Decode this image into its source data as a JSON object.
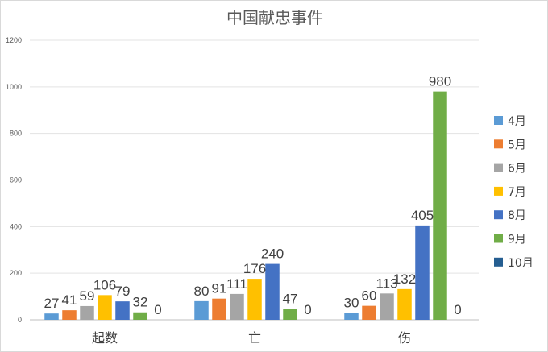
{
  "chart_data": {
    "type": "bar",
    "title": "中国献忠事件",
    "categories": [
      "起数",
      "亡",
      "伤"
    ],
    "series": [
      {
        "name": "4月",
        "color": "#5b9bd5",
        "values": [
          27,
          80,
          30
        ]
      },
      {
        "name": "5月",
        "color": "#ed7d31",
        "values": [
          41,
          91,
          60
        ]
      },
      {
        "name": "6月",
        "color": "#a5a5a5",
        "values": [
          59,
          111,
          113
        ]
      },
      {
        "name": "7月",
        "color": "#ffc000",
        "values": [
          106,
          176,
          132
        ]
      },
      {
        "name": "8月",
        "color": "#4472c4",
        "values": [
          79,
          240,
          405
        ]
      },
      {
        "name": "9月",
        "color": "#70ad47",
        "values": [
          32,
          47,
          980
        ]
      },
      {
        "name": "10月",
        "color": "#255e91",
        "values": [
          0,
          0,
          0
        ]
      }
    ],
    "ylim": [
      0,
      1200
    ],
    "yticks": [
      0,
      200,
      400,
      600,
      800,
      1000,
      1200
    ],
    "grid": true,
    "legend_position": "right",
    "data_labels": true
  }
}
